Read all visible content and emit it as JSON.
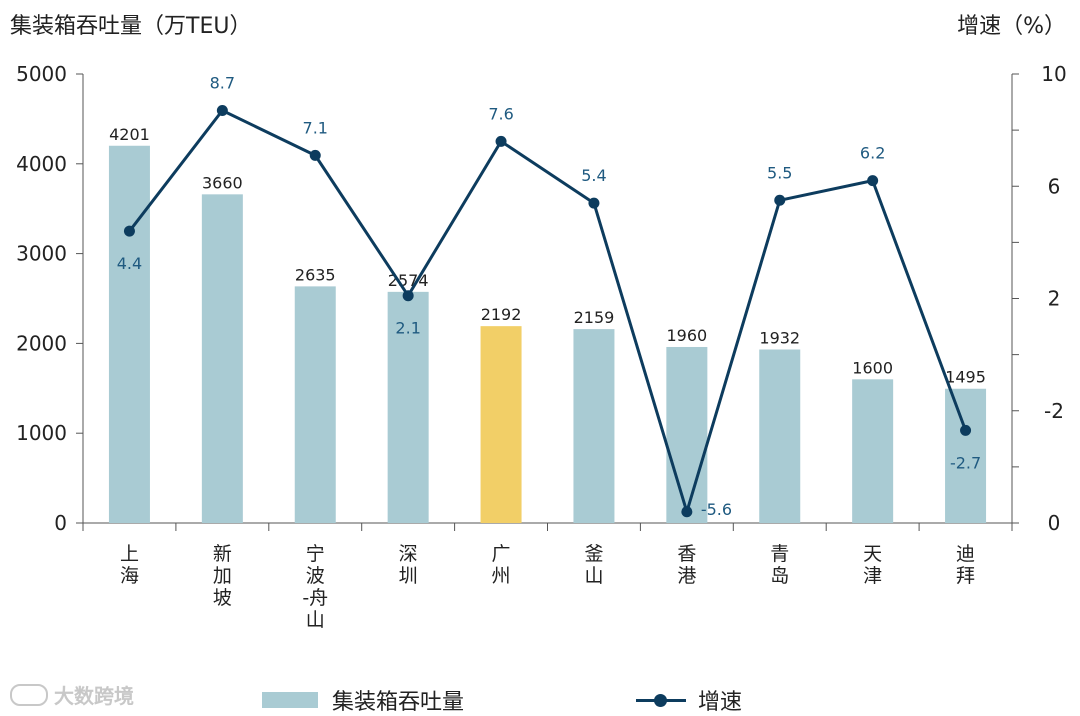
{
  "chart_data": {
    "type": "bar",
    "title": "",
    "ylabel": "集装箱吞吐量（万TEU）",
    "y2label": "增速（%）",
    "categories": [
      "上海",
      "新加坡",
      "宁波-舟山",
      "深圳",
      "广州",
      "釜山",
      "香港",
      "青岛",
      "天津",
      "迪拜"
    ],
    "category_lines": [
      [
        "上",
        "海"
      ],
      [
        "新",
        "加",
        "坡"
      ],
      [
        "宁",
        "波",
        "-舟",
        "山"
      ],
      [
        "深",
        "圳"
      ],
      [
        "广",
        "州"
      ],
      [
        "釜",
        "山"
      ],
      [
        "香",
        "港"
      ],
      [
        "青",
        "岛"
      ],
      [
        "天",
        "津"
      ],
      [
        "迪",
        "拜"
      ]
    ],
    "series": [
      {
        "name": "集装箱吞吐量",
        "type": "bar",
        "axis": "left",
        "values": [
          4201,
          3660,
          2635,
          2574,
          2192,
          2159,
          1960,
          1932,
          1600,
          1495
        ],
        "labels": [
          "4201",
          "3660",
          "2635",
          "2574",
          "2192",
          "2159",
          "1960",
          "1932",
          "1600",
          "1495"
        ],
        "color": "#a9cbd3",
        "highlight_index": 4,
        "highlight_color": "#f2cf67"
      },
      {
        "name": "增速",
        "type": "line",
        "axis": "right",
        "values": [
          4.4,
          8.7,
          7.1,
          2.1,
          7.6,
          5.4,
          -5.6,
          5.5,
          6.2,
          -2.7
        ],
        "labels": [
          "4.4",
          "8.7",
          "7.1",
          "2.1",
          "7.6",
          "5.4",
          "-5.6",
          "5.5",
          "6.2",
          "-2.7"
        ],
        "label_below": [
          true,
          false,
          false,
          true,
          false,
          false,
          false,
          false,
          false,
          true
        ],
        "color": "#0d3c5e",
        "label_color": "#1f5a80"
      }
    ],
    "y_left": {
      "min": 0,
      "max": 5000,
      "ticks": [
        0,
        1000,
        2000,
        3000,
        4000,
        5000
      ],
      "tick_labels": [
        "0",
        "1000",
        "2000",
        "3000",
        "4000",
        "5000"
      ]
    },
    "y_right": {
      "min": -6,
      "max": 10,
      "ticks": [
        -2,
        2,
        6,
        10
      ],
      "tick_labels": [
        "-2",
        "2",
        "6",
        "10"
      ],
      "baseline_label": "0"
    },
    "legend": [
      "集装箱吞吐量",
      "增速"
    ],
    "legend_position": "bottom"
  },
  "axis_titles": {
    "left": "集装箱吞吐量（万TEU）",
    "right": "增速（%）"
  },
  "legend_labels": {
    "bars": "集装箱吞吐量",
    "line": "增速"
  },
  "watermark": "大数跨境"
}
